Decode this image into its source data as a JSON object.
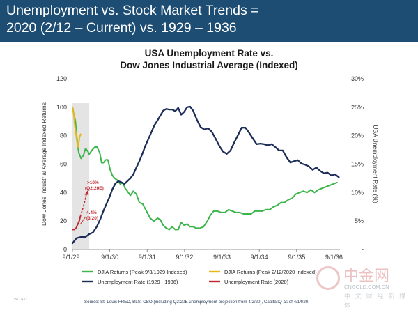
{
  "header": {
    "line1": "Unemployment vs. Stock Market Trends =",
    "line2": "2020 (2/12 – Current) vs. 1929 – 1936"
  },
  "chart_data": {
    "type": "line",
    "title": "USA Unemployment Rate vs.",
    "subtitle": "Dow Jones Industrial Average (Indexed)",
    "ylabel": "Dow Jones Industrial Average Indexed Returns",
    "y2label": "USA Unemployment Rate (%)",
    "ylim": [
      0,
      120
    ],
    "y2lim": [
      0,
      30
    ],
    "xlim": [
      1929.67,
      1936.83
    ],
    "y_ticks": [
      "0",
      "20",
      "40",
      "60",
      "80",
      "100",
      "120"
    ],
    "y2_ticks": [
      "-",
      "5%",
      "10%",
      "15%",
      "20%",
      "25%",
      "30%"
    ],
    "x_ticks": [
      {
        "label": "9/1/29",
        "x": 1929.67
      },
      {
        "label": "9/1/30",
        "x": 1930.67
      },
      {
        "label": "9/1/31",
        "x": 1931.67
      },
      {
        "label": "9/1/32",
        "x": 1932.67
      },
      {
        "label": "9/1/33",
        "x": 1933.67
      },
      {
        "label": "9/1/34",
        "x": 1934.67
      },
      {
        "label": "9/1/35",
        "x": 1935.67
      },
      {
        "label": "9/1/36",
        "x": 1936.67
      }
    ],
    "shaded_region": [
      1929.67,
      1930.12
    ],
    "series": [
      {
        "name": "DJIA Returns (Peak 9/3/1929 Indexed)",
        "color": "#3cb54a",
        "axis": "left",
        "x": [
          1929.67,
          1929.75,
          1929.8,
          1929.84,
          1929.9,
          1929.96,
          1930.02,
          1930.08,
          1930.12,
          1930.2,
          1930.27,
          1930.33,
          1930.4,
          1930.45,
          1930.5,
          1930.56,
          1930.62,
          1930.68,
          1930.74,
          1930.8,
          1930.86,
          1930.95,
          1931.02,
          1931.08,
          1931.14,
          1931.22,
          1931.3,
          1931.38,
          1931.46,
          1931.55,
          1931.65,
          1931.75,
          1931.85,
          1931.95,
          1932.02,
          1932.1,
          1932.18,
          1932.26,
          1932.34,
          1932.42,
          1932.5,
          1932.58,
          1932.66,
          1932.74,
          1932.82,
          1932.9,
          1932.98,
          1933.08,
          1933.18,
          1933.28,
          1933.36,
          1933.45,
          1933.55,
          1933.65,
          1933.75,
          1933.85,
          1933.95,
          1934.05,
          1934.15,
          1934.25,
          1934.35,
          1934.45,
          1934.55,
          1934.65,
          1934.75,
          1934.85,
          1934.95,
          1935.05,
          1935.15,
          1935.25,
          1935.35,
          1935.45,
          1935.55,
          1935.65,
          1935.75,
          1935.85,
          1935.95,
          1936.05,
          1936.15,
          1936.25,
          1936.35,
          1936.45,
          1936.55,
          1936.65,
          1936.75
        ],
        "values": [
          100,
          90,
          75,
          68,
          64,
          66,
          71,
          69,
          67,
          70,
          72,
          72,
          68,
          61,
          61,
          63,
          63,
          56,
          52,
          50,
          49,
          46,
          47,
          43,
          41,
          38,
          41,
          39,
          33,
          32,
          27,
          22,
          20,
          22,
          21,
          17,
          15,
          14,
          16,
          14,
          14,
          19,
          17,
          18,
          16,
          16,
          15,
          15,
          16,
          20,
          24,
          27,
          27,
          26,
          26,
          28,
          27,
          26,
          26,
          25,
          25,
          25,
          27,
          27,
          27,
          28,
          28,
          30,
          31,
          33,
          33,
          35,
          36,
          39,
          40,
          41,
          40,
          42,
          40,
          42,
          43,
          44,
          45,
          46,
          47
        ]
      },
      {
        "name": "DJIA Returns (Peak 2/12/2020 Indexed)",
        "color": "#e6b817",
        "axis": "left",
        "x": [
          1929.67,
          1929.7,
          1929.73,
          1929.76,
          1929.79,
          1929.82,
          1929.84,
          1929.86,
          1929.89
        ],
        "values": [
          100,
          96,
          88,
          82,
          76,
          72,
          75,
          79,
          81
        ]
      },
      {
        "name": "Unemployment Rate (1929 - 1936)",
        "color": "#1c2d57",
        "axis": "right",
        "x": [
          1929.67,
          1929.78,
          1929.9,
          1930.02,
          1930.12,
          1930.22,
          1930.32,
          1930.42,
          1930.5,
          1930.58,
          1930.66,
          1930.74,
          1930.82,
          1930.9,
          1930.98,
          1931.06,
          1931.14,
          1931.22,
          1931.3,
          1931.38,
          1931.46,
          1931.54,
          1931.62,
          1931.7,
          1931.78,
          1931.86,
          1931.94,
          1932.02,
          1932.1,
          1932.18,
          1932.26,
          1932.34,
          1932.42,
          1932.5,
          1932.58,
          1932.66,
          1932.74,
          1932.82,
          1932.9,
          1933.0,
          1933.1,
          1933.2,
          1933.3,
          1933.4,
          1933.5,
          1933.6,
          1933.7,
          1933.8,
          1933.9,
          1934.0,
          1934.1,
          1934.2,
          1934.3,
          1934.4,
          1934.5,
          1934.6,
          1934.7,
          1934.8,
          1934.9,
          1935.0,
          1935.1,
          1935.2,
          1935.3,
          1935.4,
          1935.5,
          1935.6,
          1935.7,
          1935.8,
          1935.9,
          1936.0,
          1936.1,
          1936.2,
          1936.3,
          1936.4,
          1936.5,
          1936.6,
          1936.7,
          1936.8
        ],
        "values": [
          1.1,
          2.0,
          2.2,
          2.2,
          2.7,
          3.0,
          4.0,
          5.4,
          6.8,
          8.0,
          9.2,
          10.6,
          11.6,
          12.0,
          11.8,
          11.5,
          12.0,
          12.5,
          13.2,
          14.4,
          15.5,
          16.8,
          18.2,
          19.4,
          20.6,
          21.8,
          22.6,
          23.5,
          24.4,
          24.7,
          24.6,
          24.6,
          24.3,
          24.9,
          23.7,
          24.2,
          25.0,
          25.1,
          24.4,
          22.8,
          21.5,
          21.1,
          21.3,
          20.7,
          19.5,
          18.2,
          17.2,
          16.8,
          17.4,
          18.8,
          20.1,
          21.4,
          21.4,
          20.5,
          19.5,
          18.5,
          18.6,
          18.5,
          18.3,
          18.5,
          18.0,
          17.4,
          17.4,
          16.2,
          15.3,
          15.5,
          15.7,
          15.1,
          14.9,
          14.6,
          14.0,
          14.4,
          13.8,
          13.4,
          13.5,
          13.0,
          13.2,
          12.7
        ]
      },
      {
        "name": "Unemployment Rate (2020)",
        "color": "#c0282d",
        "axis": "right",
        "x": [
          1929.67,
          1929.72,
          1929.77,
          1929.81,
          1929.85,
          1929.88
        ],
        "values": [
          3.5,
          3.5,
          3.8,
          4.4,
          5.0,
          5.8
        ]
      }
    ],
    "projection": {
      "color": "#c0282d",
      "x": [
        1929.88,
        1929.96,
        1930.02,
        1930.05
      ],
      "values": [
        5.8,
        7.5,
        9.0,
        10.1
      ]
    },
    "annotations": [
      {
        "line1": ">10%",
        "line2": "(Q2:20E)",
        "color": "#c0282d"
      },
      {
        "line1": "4.4%",
        "line2": "(3/20)",
        "color": "#c0282d"
      }
    ],
    "legend_placement": "bottom"
  },
  "footer": {
    "left_label": "BOND",
    "source": "Source: St. Louis FRED, BLS, CBO (including Q2:20E unemployment projection from 4/2/20), CapitalIQ as of 4/14/20."
  },
  "watermark": {
    "text": "中金网",
    "domain": "CNGOLD.COM.CN",
    "sub": "中 文 财 经 新 媒 体"
  }
}
